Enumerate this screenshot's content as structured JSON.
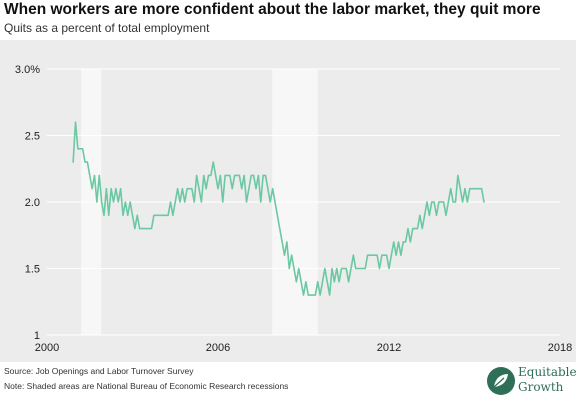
{
  "header": {
    "title": "When workers are more confident about the labor market, they quit more",
    "subtitle": "Quits as a percent of total employment"
  },
  "footer": {
    "source": "Source: Job Openings and Labor Turnover Survey",
    "note": "Note: Shaded areas are National Bureau of Economic Research recessions"
  },
  "logo": {
    "line1": "Equitable",
    "line2": "Growth"
  },
  "colors": {
    "line": "#6cc8a3",
    "plot_bg": "#ececec",
    "recession": "#f7f7f7",
    "grid": "#ffffff"
  },
  "chart_data": {
    "type": "line",
    "title": "When workers are more confident about the labor market, they quit more",
    "subtitle": "Quits as a percent of total employment",
    "xlim": [
      2000,
      2018
    ],
    "ylim": [
      1,
      3
    ],
    "x_ticks": [
      2000,
      2006,
      2012,
      2018
    ],
    "x_tick_labels": [
      "2000",
      "2006",
      "2012",
      "2018"
    ],
    "y_ticks": [
      1,
      1.5,
      2,
      2.5,
      3
    ],
    "y_tick_labels": [
      "1",
      "1.5",
      "2.0",
      "2.5",
      "3.0%"
    ],
    "grid": true,
    "legend": "none",
    "recessions": [
      {
        "start": 2001.2,
        "end": 2001.9
      },
      {
        "start": 2007.9,
        "end": 2009.5
      }
    ],
    "series": [
      {
        "x_start": 2000.917,
        "step": 0.08333,
        "values": [
          2.3,
          2.6,
          2.4,
          2.4,
          2.4,
          2.3,
          2.3,
          2.2,
          2.1,
          2.2,
          2.0,
          2.2,
          2.0,
          1.9,
          2.1,
          1.9,
          2.1,
          2.0,
          2.1,
          2.0,
          2.1,
          1.9,
          2.0,
          1.9,
          2.0,
          1.9,
          1.8,
          1.9,
          1.8,
          1.8,
          1.8,
          1.8,
          1.8,
          1.8,
          1.9,
          1.9,
          1.9,
          1.9,
          1.9,
          1.9,
          1.9,
          2.0,
          1.9,
          2.0,
          2.1,
          2.0,
          2.1,
          2.0,
          2.1,
          2.1,
          2.1,
          2.0,
          2.2,
          2.1,
          2.0,
          2.2,
          2.1,
          2.2,
          2.2,
          2.3,
          2.2,
          2.1,
          2.2,
          2.0,
          2.2,
          2.2,
          2.2,
          2.1,
          2.2,
          2.2,
          2.2,
          2.1,
          2.2,
          2.0,
          2.1,
          2.2,
          2.2,
          2.1,
          2.2,
          2.0,
          2.2,
          2.2,
          2.1,
          2.0,
          2.1,
          2.0,
          1.9,
          1.8,
          1.7,
          1.6,
          1.7,
          1.5,
          1.6,
          1.5,
          1.4,
          1.5,
          1.4,
          1.3,
          1.4,
          1.3,
          1.3,
          1.3,
          1.3,
          1.4,
          1.3,
          1.4,
          1.5,
          1.4,
          1.3,
          1.5,
          1.4,
          1.5,
          1.4,
          1.5,
          1.5,
          1.5,
          1.4,
          1.5,
          1.6,
          1.5,
          1.5,
          1.5,
          1.5,
          1.5,
          1.6,
          1.6,
          1.6,
          1.6,
          1.6,
          1.5,
          1.6,
          1.6,
          1.6,
          1.5,
          1.6,
          1.7,
          1.6,
          1.7,
          1.6,
          1.7,
          1.7,
          1.8,
          1.7,
          1.8,
          1.8,
          1.8,
          1.9,
          1.8,
          1.9,
          2.0,
          1.9,
          2.0,
          2.0,
          1.9,
          2.0,
          2.0,
          2.0,
          1.9,
          2.0,
          2.1,
          2.0,
          2.0,
          2.2,
          2.1,
          2.0,
          2.1,
          2.0,
          2.1,
          2.1,
          2.1,
          2.1,
          2.1,
          2.1,
          2.0
        ]
      }
    ]
  }
}
